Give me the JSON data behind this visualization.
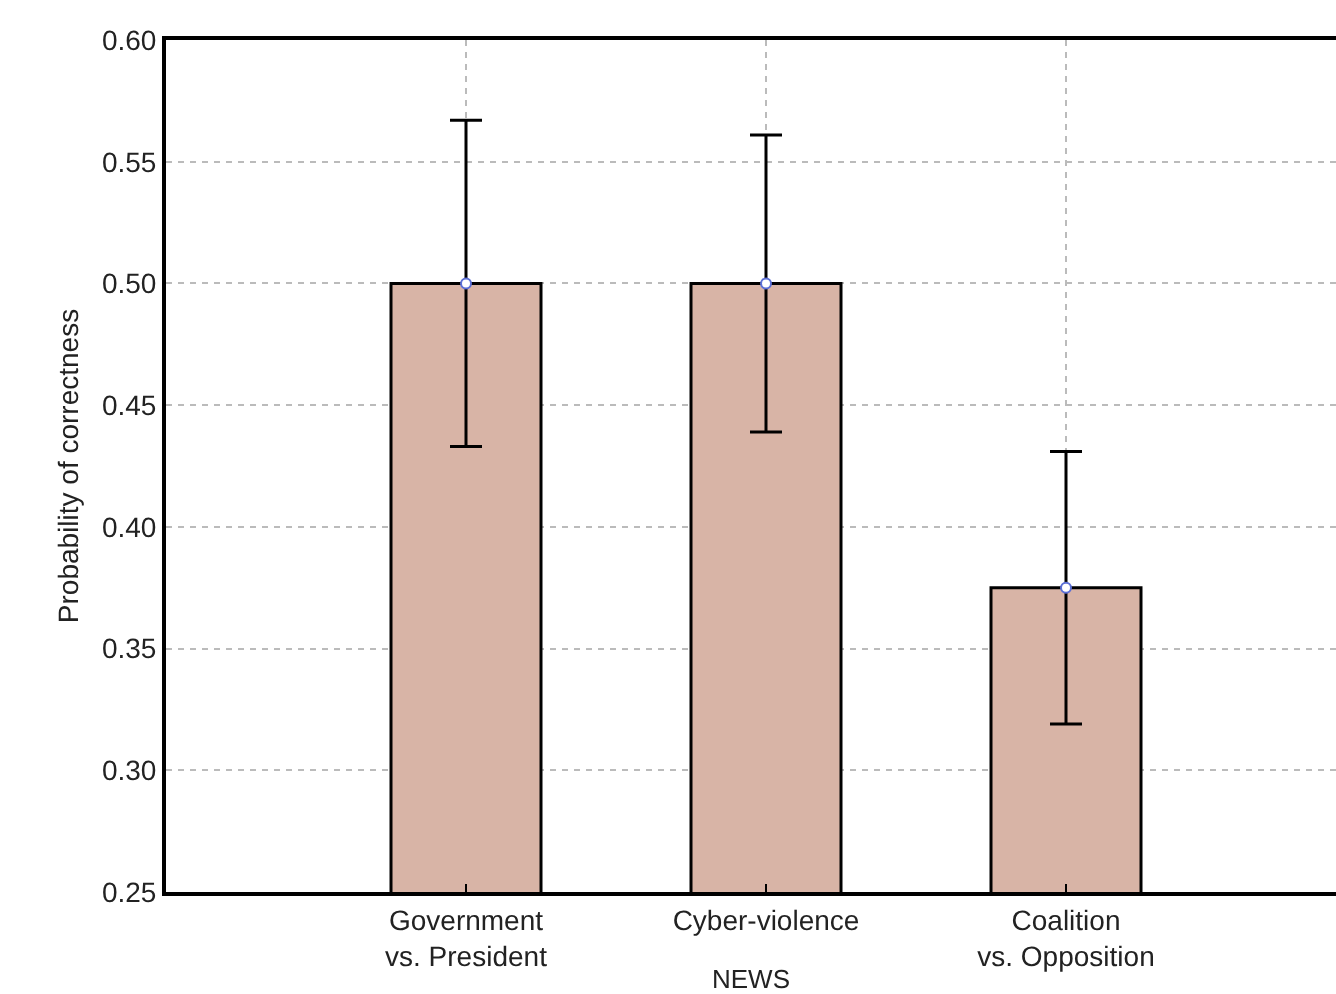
{
  "chart_data": {
    "type": "bar",
    "xlabel": "NEWS",
    "ylabel": "Probability of correctness",
    "categories": [
      "Government\nvs. President",
      "Cyber-violence",
      "Coalition\nvs. Opposition"
    ],
    "series": [
      {
        "color": "#d8b4a6",
        "values": [
          0.5,
          0.5,
          0.375
        ],
        "errors": [
          [
            0.433,
            0.567
          ],
          [
            0.439,
            0.561
          ],
          [
            0.319,
            0.431
          ]
        ]
      },
      {
        "type": "scatter",
        "color": "#ffffff",
        "marker": "circle",
        "x": [
          "Government\nvs. President",
          "Cyber-violence",
          "Coalition\nvs. Opposition"
        ],
        "values": [
          0.5,
          0.5,
          0.375
        ]
      }
    ],
    "ylim": [
      0.25,
      0.6
    ],
    "yticks": [
      {
        "value": 0.25,
        "label": "0.25"
      },
      {
        "value": 0.3,
        "label": "0.30"
      },
      {
        "value": 0.35,
        "label": "0.35"
      },
      {
        "value": 0.4,
        "label": "0.40"
      },
      {
        "value": 0.45,
        "label": "0.45"
      },
      {
        "value": 0.5,
        "label": "0.50"
      },
      {
        "value": 0.55,
        "label": "0.55"
      },
      {
        "value": 0.6,
        "label": "0.60"
      }
    ],
    "grid": true
  }
}
